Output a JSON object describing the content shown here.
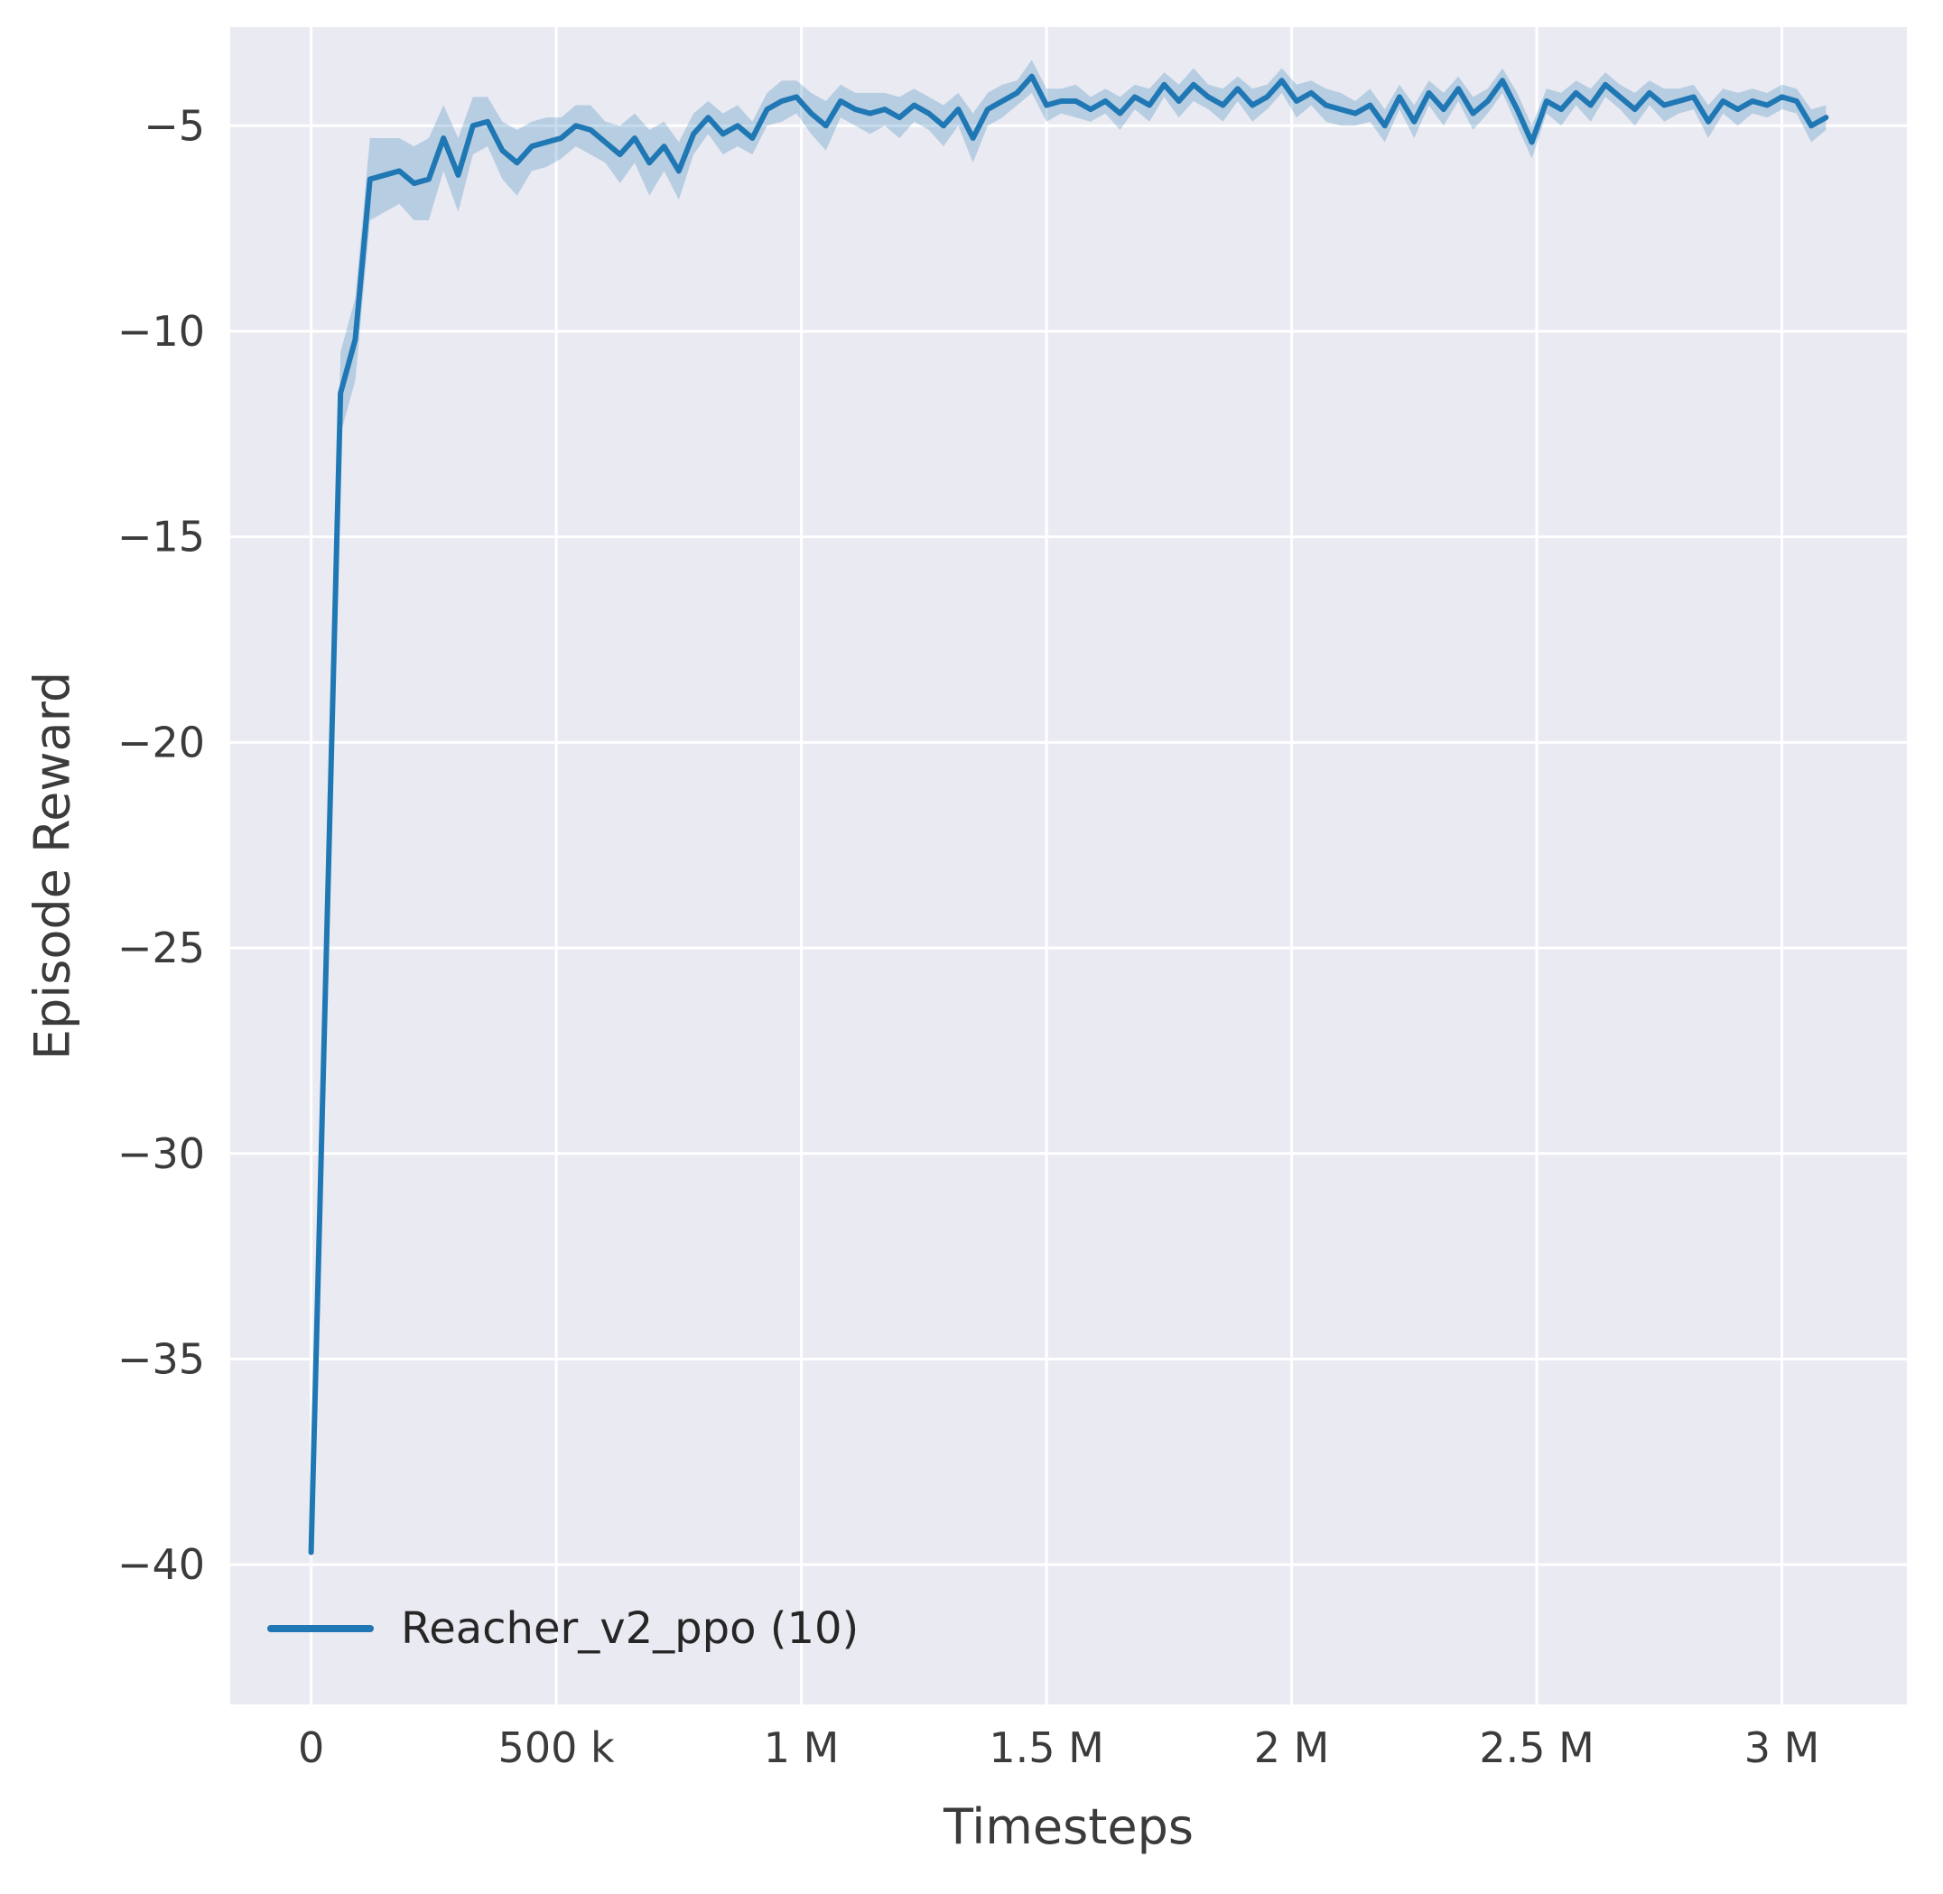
{
  "chart_data": {
    "type": "line",
    "title": "",
    "xlabel": "Timesteps",
    "ylabel": "Episode Reward",
    "xlim": [
      -165000,
      3255000
    ],
    "ylim": [
      -43.4,
      -2.6
    ],
    "grid": true,
    "style": {
      "plot_bg": "#eaeaf2",
      "grid_color": "#ffffff",
      "tick_color": "#3b3b3b",
      "band_opacity": 0.25,
      "line_width": 6
    },
    "x_ticks": [
      {
        "v": 0,
        "label": "0"
      },
      {
        "v": 500000,
        "label": "500 k"
      },
      {
        "v": 1000000,
        "label": "1 M"
      },
      {
        "v": 1500000,
        "label": "1.5 M"
      },
      {
        "v": 2000000,
        "label": "2 M"
      },
      {
        "v": 2500000,
        "label": "2.5 M"
      },
      {
        "v": 3000000,
        "label": "3 M"
      }
    ],
    "y_ticks": [
      {
        "v": -5,
        "label": "−5"
      },
      {
        "v": -10,
        "label": "−10"
      },
      {
        "v": -15,
        "label": "−15"
      },
      {
        "v": -20,
        "label": "−20"
      },
      {
        "v": -25,
        "label": "−25"
      },
      {
        "v": -30,
        "label": "−30"
      },
      {
        "v": -35,
        "label": "−35"
      },
      {
        "v": -40,
        "label": "−40"
      }
    ],
    "legend": {
      "position": "lower-left",
      "entries": [
        "Reacher_v2_ppo (10)"
      ]
    },
    "series": [
      {
        "name": "Reacher_v2_ppo (10)",
        "color": "#1f77b4",
        "x": [
          0,
          60000,
          90000,
          120000,
          150000,
          180000,
          210000,
          240000,
          270000,
          300000,
          330000,
          360000,
          390000,
          420000,
          450000,
          480000,
          510000,
          540000,
          570000,
          600000,
          630000,
          660000,
          690000,
          720000,
          750000,
          780000,
          810000,
          840000,
          870000,
          900000,
          930000,
          960000,
          990000,
          1020000,
          1050000,
          1080000,
          1110000,
          1140000,
          1170000,
          1200000,
          1230000,
          1260000,
          1290000,
          1320000,
          1350000,
          1380000,
          1410000,
          1440000,
          1470000,
          1500000,
          1530000,
          1560000,
          1590000,
          1620000,
          1650000,
          1680000,
          1710000,
          1740000,
          1770000,
          1800000,
          1830000,
          1860000,
          1890000,
          1920000,
          1950000,
          1980000,
          2010000,
          2040000,
          2070000,
          2100000,
          2130000,
          2160000,
          2190000,
          2220000,
          2250000,
          2280000,
          2310000,
          2340000,
          2370000,
          2400000,
          2430000,
          2460000,
          2490000,
          2520000,
          2550000,
          2580000,
          2610000,
          2640000,
          2670000,
          2700000,
          2730000,
          2760000,
          2790000,
          2820000,
          2850000,
          2880000,
          2910000,
          2940000,
          2970000,
          3000000,
          3030000,
          3060000,
          3090000
        ],
        "y": [
          -39.7,
          -11.5,
          -10.2,
          -6.3,
          -6.2,
          -6.1,
          -6.4,
          -6.3,
          -5.3,
          -6.2,
          -5.0,
          -4.9,
          -5.6,
          -5.9,
          -5.5,
          -5.4,
          -5.3,
          -5.0,
          -5.1,
          -5.4,
          -5.7,
          -5.3,
          -5.9,
          -5.5,
          -6.1,
          -5.2,
          -4.8,
          -5.2,
          -5.0,
          -5.3,
          -4.6,
          -4.4,
          -4.3,
          -4.7,
          -5.0,
          -4.4,
          -4.6,
          -4.7,
          -4.6,
          -4.8,
          -4.5,
          -4.7,
          -5.0,
          -4.6,
          -5.3,
          -4.6,
          -4.4,
          -4.2,
          -3.8,
          -4.5,
          -4.4,
          -4.4,
          -4.6,
          -4.4,
          -4.7,
          -4.3,
          -4.5,
          -4.0,
          -4.4,
          -4.0,
          -4.3,
          -4.5,
          -4.1,
          -4.5,
          -4.3,
          -3.9,
          -4.4,
          -4.2,
          -4.5,
          -4.6,
          -4.7,
          -4.5,
          -5.0,
          -4.3,
          -4.9,
          -4.2,
          -4.6,
          -4.1,
          -4.7,
          -4.4,
          -3.9,
          -4.6,
          -5.4,
          -4.4,
          -4.6,
          -4.2,
          -4.5,
          -4.0,
          -4.3,
          -4.6,
          -4.2,
          -4.5,
          -4.4,
          -4.3,
          -4.9,
          -4.4,
          -4.6,
          -4.4,
          -4.5,
          -4.3,
          -4.4,
          -5.0,
          -4.8
        ],
        "y_std": [
          0.5,
          1.0,
          1.0,
          1.0,
          0.9,
          0.8,
          0.9,
          1.0,
          0.8,
          0.9,
          0.7,
          0.6,
          0.7,
          0.8,
          0.6,
          0.6,
          0.5,
          0.5,
          0.6,
          0.5,
          0.7,
          0.6,
          0.8,
          0.6,
          0.7,
          0.5,
          0.4,
          0.5,
          0.5,
          0.4,
          0.4,
          0.5,
          0.4,
          0.5,
          0.6,
          0.4,
          0.4,
          0.5,
          0.4,
          0.5,
          0.4,
          0.4,
          0.5,
          0.4,
          0.6,
          0.4,
          0.4,
          0.3,
          0.4,
          0.4,
          0.3,
          0.4,
          0.3,
          0.3,
          0.4,
          0.3,
          0.4,
          0.3,
          0.4,
          0.4,
          0.3,
          0.4,
          0.3,
          0.4,
          0.3,
          0.3,
          0.4,
          0.3,
          0.4,
          0.4,
          0.3,
          0.4,
          0.4,
          0.3,
          0.4,
          0.3,
          0.4,
          0.3,
          0.4,
          0.3,
          0.3,
          0.4,
          0.4,
          0.3,
          0.4,
          0.3,
          0.4,
          0.3,
          0.3,
          0.4,
          0.3,
          0.4,
          0.3,
          0.3,
          0.4,
          0.3,
          0.4,
          0.3,
          0.3,
          0.3,
          0.3,
          0.4,
          0.3
        ]
      }
    ]
  }
}
